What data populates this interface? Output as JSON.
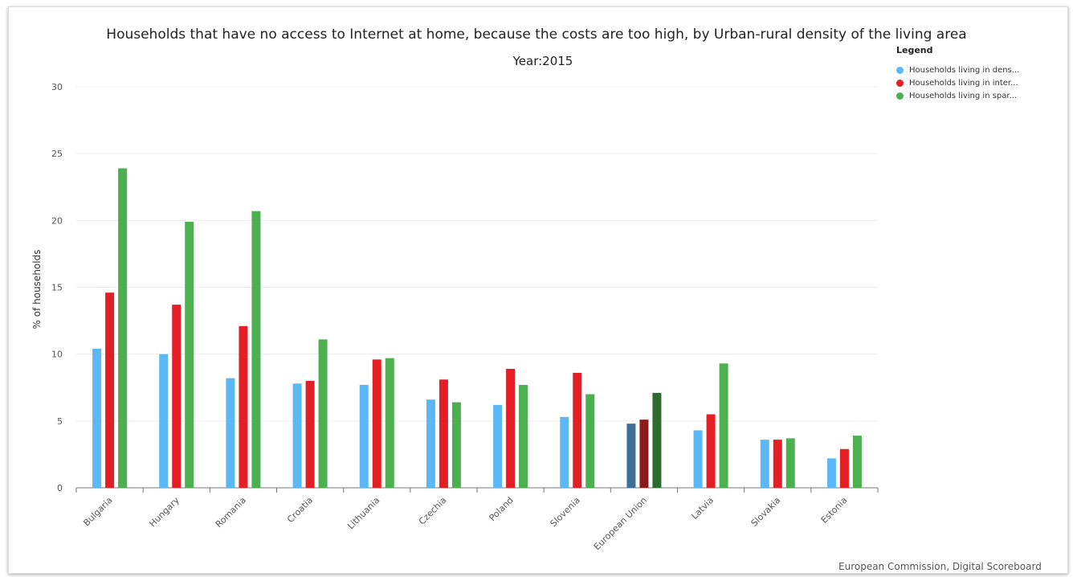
{
  "chart_data": {
    "type": "bar",
    "title": "Households that have no access to Internet at home, because the costs are too high, by Urban-rural density of the living area",
    "subtitle": "Year:2015",
    "ylabel": "% of households",
    "ylim": [
      0,
      30
    ],
    "yticks": [
      0,
      5,
      10,
      15,
      20,
      25,
      30
    ],
    "grid": true,
    "legend_title": "Legend",
    "legend_position": "top-right",
    "categories": [
      "Bulgaria",
      "Hungary",
      "Romania",
      "Croatia",
      "Lithuania",
      "Czechia",
      "Poland",
      "Slovenia",
      "European Union",
      "Latvia",
      "Slovakia",
      "Estonia"
    ],
    "series": [
      {
        "name": "Households living in dens...",
        "color": "#5bb8f5",
        "highlight_color": "#3f6f96",
        "values": [
          10.4,
          10.0,
          8.2,
          7.8,
          7.7,
          6.6,
          6.2,
          5.3,
          4.8,
          4.3,
          3.6,
          2.2
        ]
      },
      {
        "name": "Households living in inter...",
        "color": "#e31e24",
        "highlight_color": "#8b1a1a",
        "values": [
          14.6,
          13.7,
          12.1,
          8.0,
          9.6,
          8.1,
          8.9,
          8.6,
          5.1,
          5.5,
          3.6,
          2.9
        ]
      },
      {
        "name": "Households living in spar...",
        "color": "#4caf50",
        "highlight_color": "#2e6b2e",
        "values": [
          23.9,
          19.9,
          20.7,
          11.1,
          9.7,
          6.4,
          7.7,
          7.0,
          7.1,
          9.3,
          3.7,
          3.9
        ]
      }
    ],
    "highlight_category": "European Union"
  },
  "credit": "European Commission, Digital Scoreboard"
}
